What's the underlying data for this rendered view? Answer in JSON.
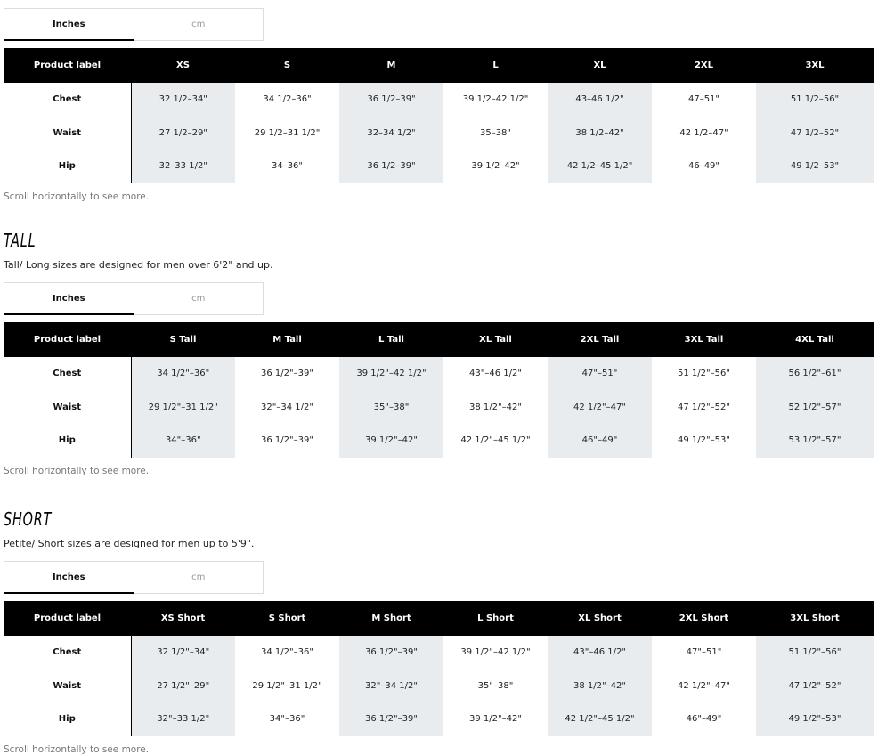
{
  "unit_tabs": {
    "inches": "Inches",
    "cm": "cm"
  },
  "scroll_note": "Scroll horizontally to see more.",
  "first_col_header": "Product label",
  "sections": [
    {
      "title": "",
      "description": "",
      "sizes": [
        "XS",
        "S",
        "M",
        "L",
        "XL",
        "2XL",
        "3XL"
      ],
      "rows": [
        {
          "label": "Chest",
          "values": [
            "32 1/2–34\"",
            "34 1/2–36\"",
            "36 1/2–39\"",
            "39 1/2–42 1/2\"",
            "43–46 1/2\"",
            "47–51\"",
            "51 1/2–56\""
          ]
        },
        {
          "label": "Waist",
          "values": [
            "27 1/2–29\"",
            "29 1/2–31 1/2\"",
            "32–34 1/2\"",
            "35–38\"",
            "38 1/2–42\"",
            "42 1/2–47\"",
            "47 1/2–52\""
          ]
        },
        {
          "label": "Hip",
          "values": [
            "32–33 1/2\"",
            "34–36\"",
            "36 1/2–39\"",
            "39 1/2–42\"",
            "42 1/2–45 1/2\"",
            "46–49\"",
            "49 1/2–53\""
          ]
        }
      ]
    },
    {
      "title": "TALL",
      "description": "Tall/ Long sizes are designed for men over 6'2\" and up.",
      "sizes": [
        "S Tall",
        "M Tall",
        "L Tall",
        "XL Tall",
        "2XL Tall",
        "3XL Tall",
        "4XL Tall"
      ],
      "rows": [
        {
          "label": "Chest",
          "values": [
            "34 1/2\"–36\"",
            "36 1/2\"–39\"",
            "39 1/2\"–42 1/2\"",
            "43\"–46 1/2\"",
            "47\"–51\"",
            "51 1/2\"–56\"",
            "56 1/2\"–61\""
          ]
        },
        {
          "label": "Waist",
          "values": [
            "29 1/2\"–31 1/2\"",
            "32\"–34 1/2\"",
            "35\"–38\"",
            "38 1/2\"–42\"",
            "42 1/2\"–47\"",
            "47 1/2\"–52\"",
            "52 1/2\"–57\""
          ]
        },
        {
          "label": "Hip",
          "values": [
            "34\"–36\"",
            "36 1/2\"–39\"",
            "39 1/2\"–42\"",
            "42 1/2\"–45 1/2\"",
            "46\"–49\"",
            "49 1/2\"–53\"",
            "53 1/2\"–57\""
          ]
        }
      ]
    },
    {
      "title": "SHORT",
      "description": "Petite/ Short sizes are designed for men up to 5'9\".",
      "sizes": [
        "XS Short",
        "S Short",
        "M Short",
        "L Short",
        "XL Short",
        "2XL Short",
        "3XL Short"
      ],
      "rows": [
        {
          "label": "Chest",
          "values": [
            "32 1/2\"–34\"",
            "34 1/2\"–36\"",
            "36 1/2\"–39\"",
            "39 1/2\"–42 1/2\"",
            "43\"–46 1/2\"",
            "47\"–51\"",
            "51 1/2\"–56\""
          ]
        },
        {
          "label": "Waist",
          "values": [
            "27 1/2\"–29\"",
            "29 1/2\"–31 1/2\"",
            "32\"–34 1/2\"",
            "35\"–38\"",
            "38 1/2\"–42\"",
            "42 1/2\"–47\"",
            "47 1/2\"–52\""
          ]
        },
        {
          "label": "Hip",
          "values": [
            "32\"–33 1/2\"",
            "34\"–36\"",
            "36 1/2\"–39\"",
            "39 1/2\"–42\"",
            "42 1/2\"–45 1/2\"",
            "46\"–49\"",
            "49 1/2\"–53\""
          ]
        }
      ]
    }
  ]
}
